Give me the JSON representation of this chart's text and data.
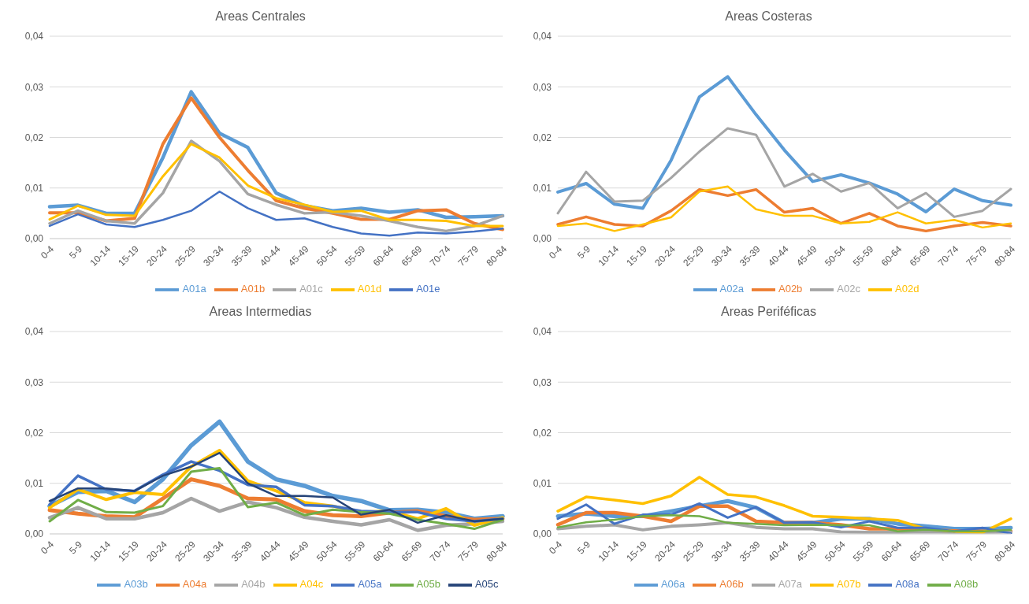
{
  "chart_data": [
    {
      "type": "line",
      "title": "Areas Centrales",
      "categories": [
        "0-4",
        "5-9",
        "10-14",
        "15-19",
        "20-24",
        "25-29",
        "30-34",
        "35-39",
        "40-44",
        "45-49",
        "50-54",
        "55-59",
        "60-64",
        "65-69",
        "70-74",
        "75-79",
        "80-84"
      ],
      "ylim": [
        0,
        0.04
      ],
      "yticks": [
        {
          "value": 0,
          "label": "0,00"
        },
        {
          "value": 0.01,
          "label": "0,01"
        },
        {
          "value": 0.02,
          "label": "0,02"
        },
        {
          "value": 0.03,
          "label": "0,03"
        },
        {
          "value": 0.04,
          "label": "0,04"
        }
      ],
      "grid": "y",
      "legend": "bottom",
      "marker": "none",
      "line_style": "solid",
      "series": [
        {
          "name": "A01a",
          "color": "#5b9bd5",
          "values": [
            0.0063,
            0.0066,
            0.005,
            0.005,
            0.016,
            0.029,
            0.0208,
            0.018,
            0.009,
            0.0065,
            0.0055,
            0.006,
            0.0052,
            0.0057,
            0.0042,
            0.0043,
            0.0045
          ]
        },
        {
          "name": "A01b",
          "color": "#ed7d31",
          "values": [
            0.0051,
            0.0051,
            0.0035,
            0.004,
            0.0187,
            0.0278,
            0.02,
            0.0135,
            0.0075,
            0.006,
            0.005,
            0.0038,
            0.0038,
            0.0055,
            0.0057,
            0.003,
            0.0018
          ]
        },
        {
          "name": "A01c",
          "color": "#a5a5a5",
          "values": [
            0.003,
            0.0055,
            0.0035,
            0.003,
            0.009,
            0.0193,
            0.0153,
            0.0088,
            0.0067,
            0.005,
            0.0052,
            0.0045,
            0.0035,
            0.0023,
            0.0015,
            0.0025,
            0.0045
          ]
        },
        {
          "name": "A01d",
          "color": "#ffc000",
          "values": [
            0.0038,
            0.0065,
            0.0047,
            0.0045,
            0.0123,
            0.0187,
            0.016,
            0.0105,
            0.008,
            0.0067,
            0.0053,
            0.0055,
            0.0037,
            0.0037,
            0.0035,
            0.0025,
            0.0025
          ]
        },
        {
          "name": "A01e",
          "color": "#4472c4",
          "values": [
            0.0025,
            0.0048,
            0.0028,
            0.0023,
            0.0037,
            0.0055,
            0.0093,
            0.006,
            0.0037,
            0.004,
            0.0023,
            0.001,
            0.0006,
            0.0012,
            0.001,
            0.0014,
            0.002
          ]
        }
      ]
    },
    {
      "type": "line",
      "title": "Areas Costeras",
      "categories": [
        "0-4",
        "5-9",
        "10-14",
        "15-19",
        "20-24",
        "25-29",
        "30-34",
        "35-39",
        "40-44",
        "45-49",
        "50-54",
        "55-59",
        "60-64",
        "65-69",
        "70-74",
        "75-79",
        "80-84"
      ],
      "ylim": [
        0,
        0.04
      ],
      "yticks": [
        {
          "value": 0,
          "label": "0,00"
        },
        {
          "value": 0.01,
          "label": "0,01"
        },
        {
          "value": 0.02,
          "label": "0,02"
        },
        {
          "value": 0.03,
          "label": "0,03"
        },
        {
          "value": 0.04,
          "label": "0,04"
        }
      ],
      "grid": "y",
      "legend": "bottom",
      "marker": "none",
      "line_style": "solid",
      "series": [
        {
          "name": "A02a",
          "color": "#5b9bd5",
          "values": [
            0.0092,
            0.0109,
            0.0068,
            0.006,
            0.0155,
            0.028,
            0.032,
            0.0245,
            0.0175,
            0.0113,
            0.0126,
            0.011,
            0.0088,
            0.0053,
            0.0098,
            0.0075,
            0.0066
          ]
        },
        {
          "name": "A02b",
          "color": "#ed7d31",
          "values": [
            0.0028,
            0.0043,
            0.0028,
            0.0025,
            0.0055,
            0.0097,
            0.0085,
            0.0097,
            0.0052,
            0.006,
            0.003,
            0.005,
            0.0025,
            0.0015,
            0.0025,
            0.0032,
            0.0025
          ]
        },
        {
          "name": "A02c",
          "color": "#a5a5a5",
          "values": [
            0.005,
            0.0132,
            0.0073,
            0.0075,
            0.012,
            0.0172,
            0.0218,
            0.0205,
            0.0103,
            0.0128,
            0.0093,
            0.011,
            0.006,
            0.009,
            0.0043,
            0.0055,
            0.0098
          ]
        },
        {
          "name": "A02d",
          "color": "#ffc000",
          "values": [
            0.0025,
            0.003,
            0.0015,
            0.0028,
            0.0042,
            0.0093,
            0.0103,
            0.0058,
            0.0045,
            0.0045,
            0.003,
            0.0033,
            0.0052,
            0.003,
            0.0037,
            0.0022,
            0.003
          ]
        }
      ]
    },
    {
      "type": "line",
      "title": "Areas Intermedias",
      "categories": [
        "0-4",
        "5-9",
        "10-14",
        "15-19",
        "20-24",
        "25-29",
        "30-34",
        "35-39",
        "40-44",
        "45-49",
        "50-54",
        "55-59",
        "60-64",
        "65-69",
        "70-74",
        "75-79",
        "80-84"
      ],
      "ylim": [
        0,
        0.04
      ],
      "yticks": [
        {
          "value": 0,
          "label": "0,00"
        },
        {
          "value": 0.01,
          "label": "0,01"
        },
        {
          "value": 0.02,
          "label": "0,02"
        },
        {
          "value": 0.03,
          "label": "0,03"
        },
        {
          "value": 0.04,
          "label": "0,04"
        }
      ],
      "grid": "y",
      "legend": "bottom",
      "marker": "none",
      "line_style": "solid",
      "series": [
        {
          "name": "A03b",
          "color": "#5b9bd5",
          "values": [
            0.0055,
            0.0083,
            0.0085,
            0.0063,
            0.0108,
            0.0175,
            0.0222,
            0.0143,
            0.0108,
            0.0095,
            0.0075,
            0.0065,
            0.0047,
            0.0048,
            0.0042,
            0.003,
            0.0035
          ]
        },
        {
          "name": "A04a",
          "color": "#ed7d31",
          "values": [
            0.0047,
            0.004,
            0.0035,
            0.0033,
            0.007,
            0.0108,
            0.0095,
            0.007,
            0.0068,
            0.0045,
            0.0037,
            0.0035,
            0.0042,
            0.0045,
            0.0035,
            0.0028,
            0.003
          ]
        },
        {
          "name": "A04b",
          "color": "#a5a5a5",
          "values": [
            0.0032,
            0.0052,
            0.003,
            0.003,
            0.0042,
            0.007,
            0.0045,
            0.0063,
            0.0052,
            0.0033,
            0.0025,
            0.0018,
            0.0028,
            0.0007,
            0.0017,
            0.002,
            0.0025
          ]
        },
        {
          "name": "A04c",
          "color": "#ffc000",
          "values": [
            0.0052,
            0.0088,
            0.0068,
            0.0082,
            0.0078,
            0.0133,
            0.0165,
            0.0105,
            0.0085,
            0.0062,
            0.0055,
            0.0043,
            0.0045,
            0.003,
            0.005,
            0.0017,
            0.0032
          ]
        },
        {
          "name": "A05a",
          "color": "#4472c4",
          "values": [
            0.0058,
            0.0115,
            0.0088,
            0.0085,
            0.0117,
            0.0143,
            0.0125,
            0.0097,
            0.0093,
            0.0057,
            0.0055,
            0.0045,
            0.0043,
            0.0043,
            0.003,
            0.0025,
            0.003
          ]
        },
        {
          "name": "A05b",
          "color": "#70ad47",
          "values": [
            0.0025,
            0.0067,
            0.0043,
            0.0042,
            0.0055,
            0.0123,
            0.013,
            0.0053,
            0.0062,
            0.0037,
            0.0048,
            0.0043,
            0.004,
            0.0028,
            0.002,
            0.001,
            0.0028
          ]
        },
        {
          "name": "A05c",
          "color": "#264478",
          "values": [
            0.0065,
            0.009,
            0.009,
            0.0085,
            0.0115,
            0.0133,
            0.016,
            0.01,
            0.0075,
            0.0075,
            0.0072,
            0.0038,
            0.0048,
            0.0022,
            0.0037,
            0.0025,
            0.003
          ]
        }
      ]
    },
    {
      "type": "line",
      "title": "Areas Periféficas",
      "categories": [
        "0-4",
        "5-9",
        "10-14",
        "15-19",
        "20-24",
        "25-29",
        "30-34",
        "35-39",
        "40-44",
        "45-49",
        "50-54",
        "55-59",
        "60-64",
        "65-69",
        "70-74",
        "75-79",
        "80-84"
      ],
      "ylim": [
        0,
        0.04
      ],
      "yticks": [
        {
          "value": 0,
          "label": "0,00"
        },
        {
          "value": 0.01,
          "label": "0,01"
        },
        {
          "value": 0.02,
          "label": "0,02"
        },
        {
          "value": 0.03,
          "label": "0,03"
        },
        {
          "value": 0.04,
          "label": "0,04"
        }
      ],
      "grid": "y",
      "legend": "bottom",
      "marker": "none",
      "line_style": "solid",
      "series": [
        {
          "name": "A06a",
          "color": "#5b9bd5",
          "values": [
            0.0035,
            0.004,
            0.0035,
            0.0035,
            0.0045,
            0.0055,
            0.0065,
            0.0052,
            0.0022,
            0.0022,
            0.003,
            0.003,
            0.002,
            0.0015,
            0.001,
            0.001,
            0.0012
          ]
        },
        {
          "name": "A06b",
          "color": "#ed7d31",
          "values": [
            0.0018,
            0.0042,
            0.0042,
            0.0035,
            0.0025,
            0.0055,
            0.0055,
            0.0025,
            0.0022,
            0.0022,
            0.0018,
            0.001,
            0.001,
            0.0008,
            0.0006,
            0.0005,
            0.0005
          ]
        },
        {
          "name": "A07a",
          "color": "#a5a5a5",
          "values": [
            0.001,
            0.0015,
            0.0018,
            0.0008,
            0.0015,
            0.0018,
            0.0022,
            0.0013,
            0.001,
            0.001,
            0.0004,
            0.0003,
            0.0003,
            0.0004,
            0.0003,
            0.0003,
            0.0004
          ]
        },
        {
          "name": "A07b",
          "color": "#ffc000",
          "values": [
            0.0045,
            0.0073,
            0.0067,
            0.006,
            0.0075,
            0.0112,
            0.0078,
            0.0073,
            0.0056,
            0.0035,
            0.0033,
            0.003,
            0.0027,
            0.001,
            0.0005,
            0.0003,
            0.003
          ]
        },
        {
          "name": "A08a",
          "color": "#4472c4",
          "values": [
            0.003,
            0.0058,
            0.002,
            0.0038,
            0.0038,
            0.006,
            0.0032,
            0.0053,
            0.0022,
            0.0023,
            0.0013,
            0.0025,
            0.0012,
            0.0012,
            0.0005,
            0.0012,
            0.0001
          ]
        },
        {
          "name": "A08b",
          "color": "#70ad47",
          "values": [
            0.0013,
            0.0023,
            0.0028,
            0.0035,
            0.0037,
            0.0035,
            0.0022,
            0.002,
            0.0017,
            0.0018,
            0.0017,
            0.0017,
            0.0005,
            0.0008,
            0.0005,
            0.0005,
            0.0008
          ]
        }
      ]
    }
  ]
}
